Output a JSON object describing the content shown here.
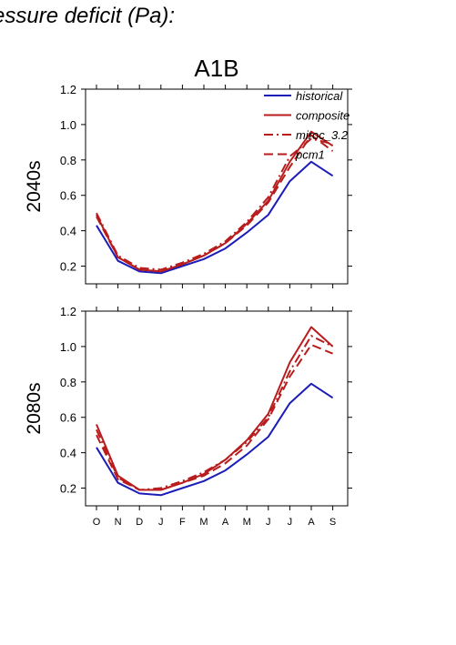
{
  "figure": {
    "title": "essure deficit (Pa):"
  },
  "colors": {
    "historical": "#1c1cb8",
    "scenario": "#b81c1c"
  },
  "chart_data": [
    {
      "type": "line",
      "title": "A1B",
      "ylabel": "2040s",
      "xlabel": "",
      "categories": [
        "O",
        "N",
        "D",
        "J",
        "F",
        "M",
        "A",
        "M",
        "J",
        "J",
        "A",
        "S"
      ],
      "ylim": [
        0.1,
        1.2
      ],
      "yticks": [
        0.2,
        0.4,
        0.6,
        0.8,
        1.0,
        1.2
      ],
      "ytick_labels": [
        "0.2",
        "0.4",
        "0.6",
        "0.8",
        "1.0",
        "1.2"
      ],
      "legend": {
        "placement": "top-right"
      },
      "series": [
        {
          "name": "historical",
          "style": "solid",
          "color": "#1c1cb8",
          "values": [
            0.43,
            0.23,
            0.17,
            0.16,
            0.2,
            0.24,
            0.3,
            0.39,
            0.49,
            0.68,
            0.79,
            0.71
          ]
        },
        {
          "name": "composite",
          "style": "solid",
          "color": "#b81c1c",
          "values": [
            0.49,
            0.25,
            0.18,
            0.17,
            0.21,
            0.26,
            0.33,
            0.44,
            0.57,
            0.79,
            0.96,
            0.88
          ]
        },
        {
          "name": "miroc_3.2",
          "style": "dashdot",
          "color": "#b81c1c",
          "values": [
            0.5,
            0.26,
            0.19,
            0.18,
            0.22,
            0.27,
            0.34,
            0.45,
            0.59,
            0.82,
            0.92,
            0.89
          ]
        },
        {
          "name": "pcm1",
          "style": "dash",
          "color": "#b81c1c",
          "values": [
            0.48,
            0.25,
            0.18,
            0.17,
            0.21,
            0.26,
            0.33,
            0.43,
            0.56,
            0.76,
            0.94,
            0.85
          ]
        }
      ]
    },
    {
      "type": "line",
      "title": "",
      "ylabel": "2080s",
      "xlabel": "",
      "categories": [
        "O",
        "N",
        "D",
        "J",
        "F",
        "M",
        "A",
        "M",
        "J",
        "J",
        "A",
        "S"
      ],
      "xtick_labels": [
        "O",
        "N",
        "D",
        "J",
        "F",
        "M",
        "A",
        "M",
        "J",
        "J",
        "A",
        "S"
      ],
      "ylim": [
        0.1,
        1.2
      ],
      "yticks": [
        0.2,
        0.4,
        0.6,
        0.8,
        1.0,
        1.2
      ],
      "ytick_labels": [
        "0.2",
        "0.4",
        "0.6",
        "0.8",
        "1.0",
        "1.2"
      ],
      "series": [
        {
          "name": "historical",
          "style": "solid",
          "color": "#1c1cb8",
          "values": [
            0.43,
            0.23,
            0.17,
            0.16,
            0.2,
            0.24,
            0.3,
            0.39,
            0.49,
            0.68,
            0.79,
            0.71
          ]
        },
        {
          "name": "composite",
          "style": "solid",
          "color": "#b81c1c",
          "values": [
            0.56,
            0.27,
            0.19,
            0.19,
            0.23,
            0.28,
            0.36,
            0.47,
            0.62,
            0.91,
            1.11,
            1.0
          ]
        },
        {
          "name": "miroc_3.2",
          "style": "dashdot",
          "color": "#b81c1c",
          "values": [
            0.53,
            0.26,
            0.19,
            0.2,
            0.24,
            0.29,
            0.36,
            0.46,
            0.6,
            0.86,
            1.06,
            1.0
          ]
        },
        {
          "name": "pcm1",
          "style": "dash",
          "color": "#b81c1c",
          "values": [
            0.5,
            0.25,
            0.19,
            0.19,
            0.23,
            0.27,
            0.34,
            0.44,
            0.59,
            0.83,
            1.01,
            0.96
          ]
        }
      ]
    }
  ]
}
